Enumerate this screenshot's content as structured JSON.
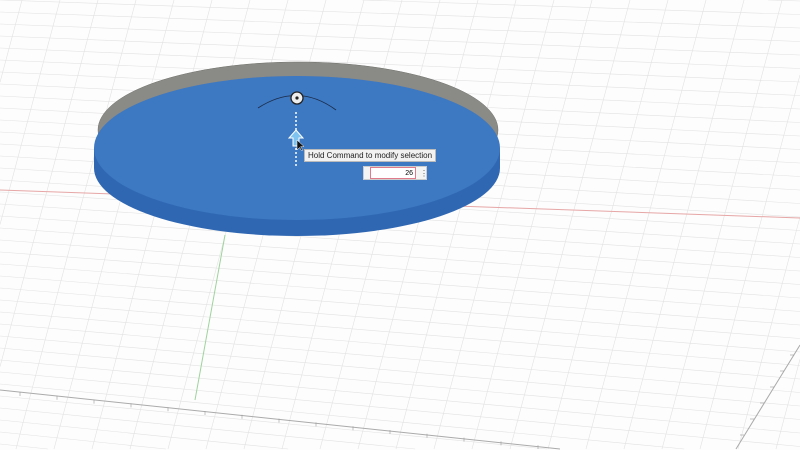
{
  "tooltip": {
    "text": "Hold Command to modify selection"
  },
  "dimension_input": {
    "value": "26"
  },
  "icons": {
    "manipulator": "circle-dot-handle-icon",
    "arrow": "extrude-arrow-icon",
    "more": "vertical-ellipsis-icon"
  },
  "colors": {
    "face": "#3d78c2",
    "side": "#2f67b3",
    "rim": "#8a8a86",
    "x_axis": "#e0a0a0",
    "y_axis": "#9fd39f",
    "grid": "#dcdcdc"
  }
}
